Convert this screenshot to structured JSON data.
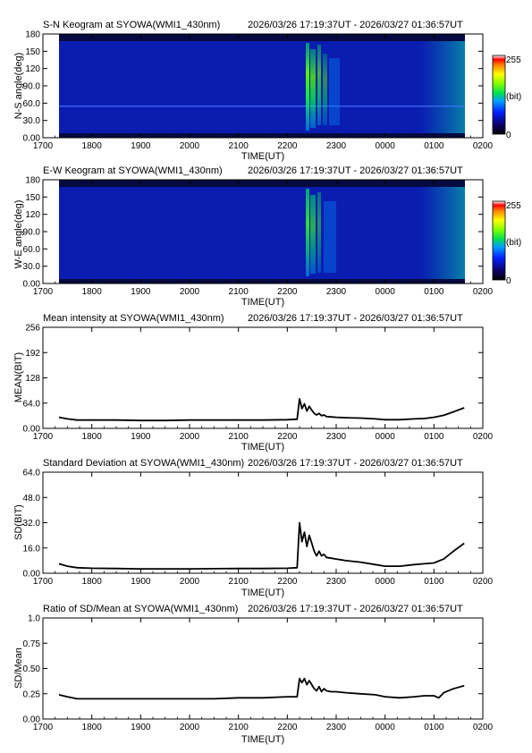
{
  "chart_data": [
    {
      "type": "heatmap",
      "title": "S-N Keogram at SYOWA(WMI1_430nm)",
      "subtitle": "2026/03/26 17:19:37UT - 2026/03/27 01:36:57UT",
      "xlabel": "TIME(UT)",
      "ylabel": "N-S angle(deg)",
      "x_ticks": [
        "1700",
        "1800",
        "1900",
        "2000",
        "2100",
        "2200",
        "2300",
        "0000",
        "0100",
        "0200"
      ],
      "y_ticks": [
        "0.00",
        "30.0",
        "60.0",
        "90.0",
        "120",
        "150",
        "180"
      ],
      "xlim_hours": [
        17.0,
        26.0
      ],
      "ylim": [
        0,
        180
      ],
      "colorbar": {
        "min_label": "0",
        "max_label": "255",
        "unit_label": "(bit)"
      },
      "data_time_range_hours": [
        17.33,
        25.62
      ],
      "features": {
        "aurora_onset_hours": 22.2,
        "bright_bands_hours": [
          22.25,
          22.35,
          22.45,
          22.55
        ],
        "horizontal_stripe_deg": 56
      }
    },
    {
      "type": "heatmap",
      "title": "E-W Keogram at SYOWA(WMI1_430nm)",
      "subtitle": "2026/03/26 17:19:37UT - 2026/03/27 01:36:57UT",
      "xlabel": "TIME(UT)",
      "ylabel": "W-E angle(deg)",
      "x_ticks": [
        "1700",
        "1800",
        "1900",
        "2000",
        "2100",
        "2200",
        "2300",
        "0000",
        "0100",
        "0200"
      ],
      "y_ticks": [
        "0.00",
        "30.0",
        "60.0",
        "90.0",
        "120",
        "150",
        "180"
      ],
      "xlim_hours": [
        17.0,
        26.0
      ],
      "ylim": [
        0,
        180
      ],
      "colorbar": {
        "min_label": "0",
        "max_label": "255",
        "unit_label": "(bit)"
      },
      "data_time_range_hours": [
        17.33,
        25.62
      ],
      "features": {
        "aurora_onset_hours": 22.2,
        "bright_bands_hours": [
          22.25,
          22.35,
          22.45
        ]
      }
    },
    {
      "type": "line",
      "title": "Mean intensity at SYOWA(WMI1_430nm)",
      "subtitle": "2026/03/26 17:19:37UT - 2026/03/27 01:36:57UT",
      "xlabel": "TIME(UT)",
      "ylabel": "MEAN(BIT)",
      "x_ticks": [
        "1700",
        "1800",
        "1900",
        "2000",
        "2100",
        "2200",
        "2300",
        "0000",
        "0100",
        "0200"
      ],
      "y_ticks": [
        "0.00",
        "64.0",
        "128",
        "192",
        "256"
      ],
      "xlim_hours": [
        17.0,
        26.0
      ],
      "ylim": [
        0,
        256
      ],
      "series": [
        {
          "x": [
            17.33,
            17.5,
            17.7,
            18.0,
            18.5,
            19.0,
            19.5,
            20.0,
            20.5,
            21.0,
            21.5,
            22.0,
            22.2,
            22.25,
            22.3,
            22.35,
            22.4,
            22.45,
            22.5,
            22.55,
            22.6,
            22.65,
            22.7,
            22.75,
            22.8,
            22.9,
            23.0,
            23.2,
            23.5,
            23.8,
            24.0,
            24.3,
            24.6,
            24.8,
            25.0,
            25.2,
            25.4,
            25.62
          ],
          "y": [
            28,
            24,
            21,
            21,
            21,
            20,
            20,
            21,
            21,
            21,
            21,
            22,
            23,
            75,
            50,
            62,
            44,
            56,
            46,
            38,
            34,
            38,
            32,
            34,
            30,
            29,
            28,
            27,
            26,
            24,
            22,
            22,
            24,
            25,
            28,
            33,
            42,
            52
          ]
        }
      ]
    },
    {
      "type": "line",
      "title": "Standard Deviation at SYOWA(WMI1_430nm)",
      "subtitle": "2026/03/26 17:19:37UT - 2026/03/27 01:36:57UT",
      "xlabel": "TIME(UT)",
      "ylabel": "SD(BIT)",
      "x_ticks": [
        "1700",
        "1800",
        "1900",
        "2000",
        "2100",
        "2200",
        "2300",
        "0000",
        "0100",
        "0200"
      ],
      "y_ticks": [
        "0.00",
        "16.0",
        "32.0",
        "48.0",
        "64.0"
      ],
      "xlim_hours": [
        17.0,
        26.0
      ],
      "ylim": [
        0,
        64
      ],
      "series": [
        {
          "x": [
            17.33,
            17.5,
            17.7,
            18.0,
            18.5,
            19.0,
            19.5,
            20.0,
            20.5,
            21.0,
            21.5,
            22.0,
            22.2,
            22.25,
            22.3,
            22.35,
            22.4,
            22.45,
            22.5,
            22.55,
            22.6,
            22.65,
            22.7,
            22.75,
            22.8,
            22.9,
            23.0,
            23.2,
            23.5,
            23.8,
            24.0,
            24.3,
            24.6,
            24.8,
            25.0,
            25.2,
            25.4,
            25.62
          ],
          "y": [
            6.0,
            4.5,
            3.5,
            3.2,
            3.0,
            2.8,
            2.8,
            2.8,
            2.9,
            3.0,
            3.0,
            3.2,
            3.5,
            32,
            20,
            26,
            17,
            24,
            19,
            14,
            11,
            14,
            11,
            12,
            10,
            9.5,
            9.0,
            8.0,
            7.0,
            5.5,
            4.5,
            4.5,
            5.5,
            6.0,
            6.5,
            9.0,
            14,
            19
          ]
        }
      ]
    },
    {
      "type": "line",
      "title": "Ratio of SD/Mean at SYOWA(WMI1_430nm)",
      "subtitle": "2026/03/26 17:19:37UT - 2026/03/27 01:36:57UT",
      "xlabel": "TIME(UT)",
      "ylabel": "SD/Mean",
      "x_ticks": [
        "1700",
        "1800",
        "1900",
        "2000",
        "2100",
        "2200",
        "2300",
        "0000",
        "0100",
        "0200"
      ],
      "y_ticks": [
        "0.00",
        "0.25",
        "0.50",
        "0.75",
        "1.0"
      ],
      "xlim_hours": [
        17.0,
        26.0
      ],
      "ylim": [
        0,
        1
      ],
      "series": [
        {
          "x": [
            17.33,
            17.5,
            17.7,
            18.0,
            18.5,
            19.0,
            19.5,
            20.0,
            20.5,
            21.0,
            21.5,
            22.0,
            22.2,
            22.25,
            22.3,
            22.35,
            22.4,
            22.45,
            22.5,
            22.55,
            22.6,
            22.65,
            22.7,
            22.75,
            22.8,
            22.9,
            23.0,
            23.2,
            23.5,
            23.8,
            24.0,
            24.3,
            24.6,
            24.8,
            25.0,
            25.1,
            25.2,
            25.4,
            25.62
          ],
          "y": [
            0.24,
            0.22,
            0.2,
            0.2,
            0.2,
            0.2,
            0.2,
            0.2,
            0.2,
            0.21,
            0.21,
            0.22,
            0.22,
            0.4,
            0.36,
            0.4,
            0.34,
            0.38,
            0.34,
            0.3,
            0.28,
            0.32,
            0.27,
            0.3,
            0.28,
            0.27,
            0.27,
            0.26,
            0.25,
            0.24,
            0.22,
            0.21,
            0.22,
            0.23,
            0.23,
            0.21,
            0.26,
            0.3,
            0.33
          ]
        }
      ]
    }
  ]
}
